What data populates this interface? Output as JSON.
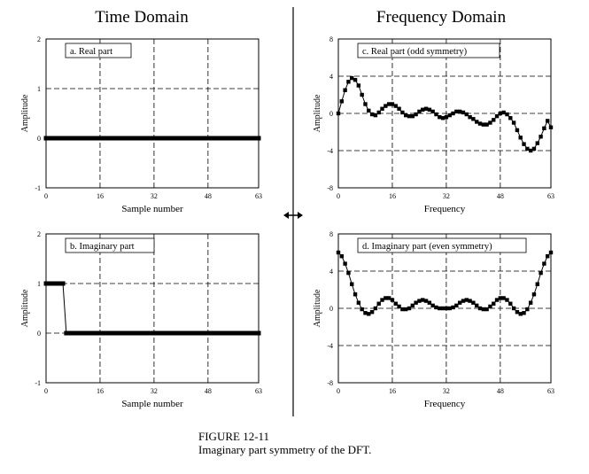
{
  "headings": {
    "time": "Time Domain",
    "frequency": "Frequency Domain"
  },
  "caption": {
    "figure": "FIGURE 12-11",
    "text": "Imaginary part symmetry of the DFT."
  },
  "arrow_icon": "double-arrow-icon",
  "chart_data": [
    {
      "id": "a",
      "type": "line",
      "panel_label": "a.  Real part",
      "xlabel": "Sample number",
      "ylabel": "Amplitude",
      "xlim": [
        0,
        63
      ],
      "ylim": [
        -1,
        2
      ],
      "xticks": [
        0,
        16,
        32,
        48,
        63
      ],
      "yticks": [
        -1,
        0,
        1,
        2
      ],
      "grid": true,
      "markers": "thick",
      "x": [
        0,
        1,
        2,
        3,
        4,
        5,
        6,
        7,
        8,
        9,
        10,
        11,
        12,
        13,
        14,
        15,
        16,
        17,
        18,
        19,
        20,
        21,
        22,
        23,
        24,
        25,
        26,
        27,
        28,
        29,
        30,
        31,
        32,
        33,
        34,
        35,
        36,
        37,
        38,
        39,
        40,
        41,
        42,
        43,
        44,
        45,
        46,
        47,
        48,
        49,
        50,
        51,
        52,
        53,
        54,
        55,
        56,
        57,
        58,
        59,
        60,
        61,
        62,
        63
      ],
      "y": [
        0,
        0,
        0,
        0,
        0,
        0,
        0,
        0,
        0,
        0,
        0,
        0,
        0,
        0,
        0,
        0,
        0,
        0,
        0,
        0,
        0,
        0,
        0,
        0,
        0,
        0,
        0,
        0,
        0,
        0,
        0,
        0,
        0,
        0,
        0,
        0,
        0,
        0,
        0,
        0,
        0,
        0,
        0,
        0,
        0,
        0,
        0,
        0,
        0,
        0,
        0,
        0,
        0,
        0,
        0,
        0,
        0,
        0,
        0,
        0,
        0,
        0,
        0,
        0
      ]
    },
    {
      "id": "b",
      "type": "line",
      "panel_label": "b.  Imaginary part",
      "xlabel": "Sample number",
      "ylabel": "Amplitude",
      "xlim": [
        0,
        63
      ],
      "ylim": [
        -1,
        2
      ],
      "xticks": [
        0,
        16,
        32,
        48,
        63
      ],
      "yticks": [
        -1,
        0,
        1,
        2
      ],
      "grid": true,
      "markers": "thick",
      "x": [
        0,
        1,
        2,
        3,
        4,
        5,
        6,
        7,
        8,
        9,
        10,
        11,
        12,
        13,
        14,
        15,
        16,
        17,
        18,
        19,
        20,
        21,
        22,
        23,
        24,
        25,
        26,
        27,
        28,
        29,
        30,
        31,
        32,
        33,
        34,
        35,
        36,
        37,
        38,
        39,
        40,
        41,
        42,
        43,
        44,
        45,
        46,
        47,
        48,
        49,
        50,
        51,
        52,
        53,
        54,
        55,
        56,
        57,
        58,
        59,
        60,
        61,
        62,
        63
      ],
      "y": [
        1,
        1,
        1,
        1,
        1,
        1,
        0,
        0,
        0,
        0,
        0,
        0,
        0,
        0,
        0,
        0,
        0,
        0,
        0,
        0,
        0,
        0,
        0,
        0,
        0,
        0,
        0,
        0,
        0,
        0,
        0,
        0,
        0,
        0,
        0,
        0,
        0,
        0,
        0,
        0,
        0,
        0,
        0,
        0,
        0,
        0,
        0,
        0,
        0,
        0,
        0,
        0,
        0,
        0,
        0,
        0,
        0,
        0,
        0,
        0,
        0,
        0,
        0,
        0
      ]
    },
    {
      "id": "c",
      "type": "line",
      "panel_label": "c.  Real part  (odd symmetry)",
      "xlabel": "Frequency",
      "ylabel": "Amplitude",
      "xlim": [
        0,
        63
      ],
      "ylim": [
        -8,
        8
      ],
      "xticks": [
        0,
        16,
        32,
        48,
        63
      ],
      "yticks": [
        -8,
        -4,
        0,
        4,
        8
      ],
      "grid": true,
      "markers": "square",
      "x": [
        0,
        1,
        2,
        3,
        4,
        5,
        6,
        7,
        8,
        9,
        10,
        11,
        12,
        13,
        14,
        15,
        16,
        17,
        18,
        19,
        20,
        21,
        22,
        23,
        24,
        25,
        26,
        27,
        28,
        29,
        30,
        31,
        32,
        33,
        34,
        35,
        36,
        37,
        38,
        39,
        40,
        41,
        42,
        43,
        44,
        45,
        46,
        47,
        48,
        49,
        50,
        51,
        52,
        53,
        54,
        55,
        56,
        57,
        58,
        59,
        60,
        61,
        62,
        63
      ],
      "y": [
        0.0,
        1.3,
        2.5,
        3.4,
        3.8,
        3.6,
        3.0,
        2.0,
        1.0,
        0.3,
        -0.1,
        -0.2,
        0.1,
        0.5,
        0.8,
        1.0,
        1.0,
        0.8,
        0.5,
        0.1,
        -0.2,
        -0.3,
        -0.3,
        -0.1,
        0.2,
        0.4,
        0.5,
        0.4,
        0.2,
        -0.1,
        -0.4,
        -0.5,
        -0.4,
        -0.2,
        0.0,
        0.2,
        0.2,
        0.1,
        -0.1,
        -0.4,
        -0.6,
        -0.9,
        -1.1,
        -1.2,
        -1.2,
        -1.0,
        -0.7,
        -0.3,
        0.0,
        0.1,
        -0.1,
        -0.5,
        -1.0,
        -1.8,
        -2.6,
        -3.3,
        -3.8,
        -4.0,
        -3.8,
        -3.2,
        -2.5,
        -1.6,
        -0.8,
        -1.5
      ]
    },
    {
      "id": "d",
      "type": "line",
      "panel_label": "d.  Imaginary part  (even symmetry)",
      "xlabel": "Frequency",
      "ylabel": "Amplitude",
      "xlim": [
        0,
        63
      ],
      "ylim": [
        -8,
        8
      ],
      "xticks": [
        0,
        16,
        32,
        48,
        63
      ],
      "yticks": [
        -8,
        -4,
        0,
        4,
        8
      ],
      "grid": true,
      "markers": "square",
      "x": [
        0,
        1,
        2,
        3,
        4,
        5,
        6,
        7,
        8,
        9,
        10,
        11,
        12,
        13,
        14,
        15,
        16,
        17,
        18,
        19,
        20,
        21,
        22,
        23,
        24,
        25,
        26,
        27,
        28,
        29,
        30,
        31,
        32,
        33,
        34,
        35,
        36,
        37,
        38,
        39,
        40,
        41,
        42,
        43,
        44,
        45,
        46,
        47,
        48,
        49,
        50,
        51,
        52,
        53,
        54,
        55,
        56,
        57,
        58,
        59,
        60,
        61,
        62,
        63
      ],
      "y": [
        6.0,
        5.6,
        4.8,
        3.8,
        2.6,
        1.5,
        0.6,
        -0.1,
        -0.5,
        -0.6,
        -0.4,
        0.0,
        0.5,
        0.9,
        1.1,
        1.1,
        0.9,
        0.5,
        0.2,
        -0.1,
        -0.1,
        0.0,
        0.3,
        0.6,
        0.8,
        0.9,
        0.8,
        0.6,
        0.3,
        0.1,
        0.0,
        0.0,
        0.0,
        0.0,
        0.1,
        0.3,
        0.6,
        0.8,
        0.9,
        0.8,
        0.6,
        0.3,
        0.0,
        -0.1,
        -0.1,
        0.2,
        0.5,
        0.9,
        1.1,
        1.1,
        0.9,
        0.5,
        0.0,
        -0.4,
        -0.6,
        -0.5,
        -0.1,
        0.6,
        1.5,
        2.6,
        3.8,
        4.8,
        5.6,
        6.0
      ]
    }
  ]
}
